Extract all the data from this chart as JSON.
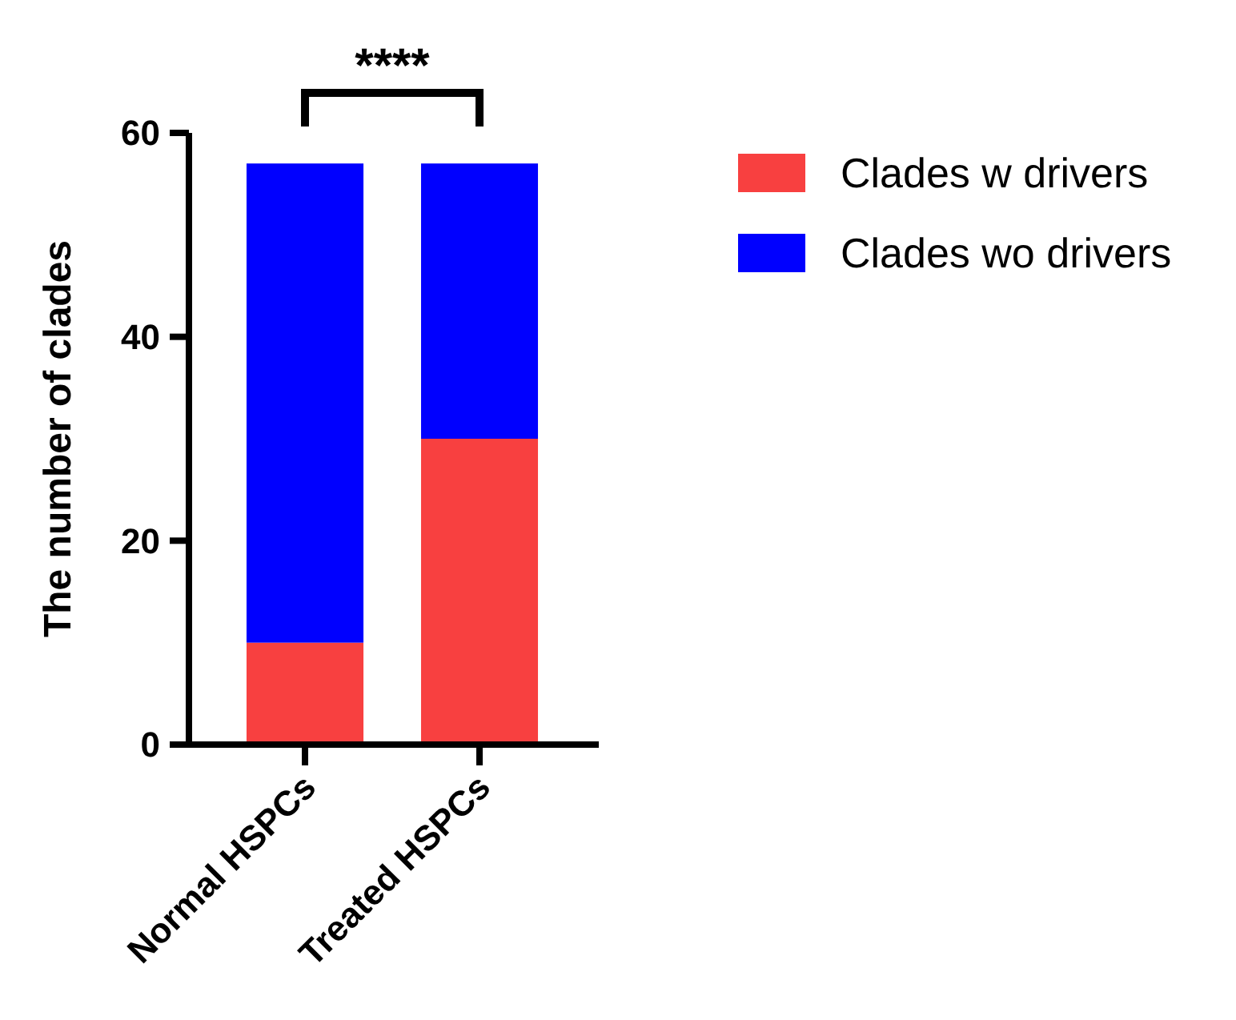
{
  "chart_data": {
    "type": "bar",
    "stacked": true,
    "ylabel": "The number of clades",
    "categories": [
      "Normal HSPCs",
      "Treated HSPCs"
    ],
    "series": [
      {
        "name": "Clades w drivers",
        "color": "#f84040",
        "values": [
          10,
          30
        ]
      },
      {
        "name": "Clades wo drivers",
        "color": "#0000ff",
        "values": [
          47,
          27
        ]
      }
    ],
    "ylim": [
      0,
      60
    ],
    "yticks": [
      0,
      20,
      40,
      60
    ],
    "grid": false,
    "legend": "top right",
    "annotations": [
      "****"
    ]
  }
}
